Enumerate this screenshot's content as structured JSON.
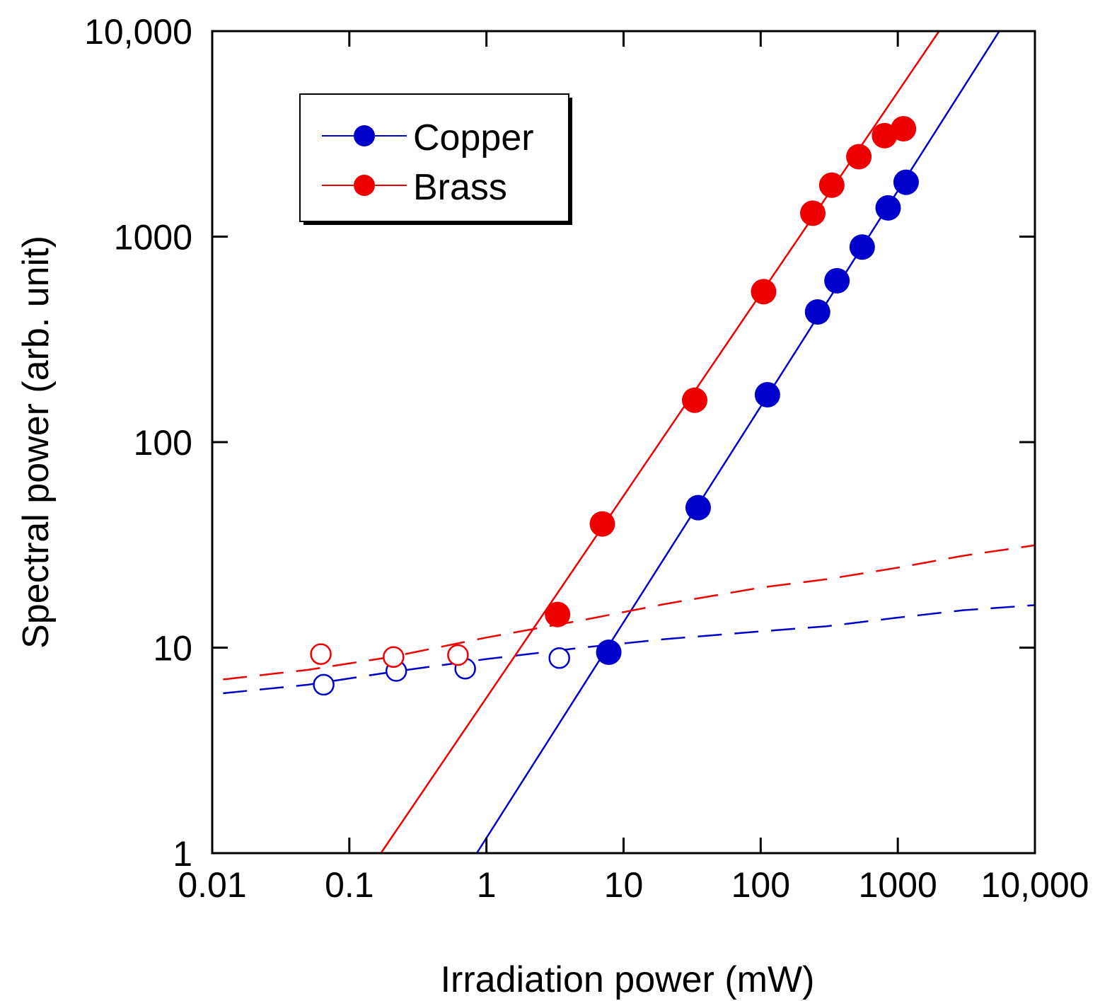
{
  "chart_data": {
    "type": "scatter",
    "title": "",
    "xlabel": "Irradiation power (mW)",
    "ylabel": "Spectral power (arb. unit)",
    "xscale": "log",
    "yscale": "log",
    "xlim": [
      0.01,
      10000
    ],
    "ylim": [
      1,
      10000
    ],
    "x_ticks": [
      0.01,
      0.1,
      1,
      10,
      100,
      1000,
      10000
    ],
    "x_tick_labels": [
      "0.01",
      "0.1",
      "1",
      "10",
      "100",
      "1000",
      "10,000"
    ],
    "y_ticks": [
      1,
      10,
      100,
      1000,
      10000
    ],
    "y_tick_labels": [
      "1",
      "10",
      "100",
      "1000",
      "10,000"
    ],
    "legend": {
      "position": "top-left",
      "entries": [
        {
          "label": "Copper",
          "color": "#0000cc"
        },
        {
          "label": "Brass",
          "color": "#ee0000"
        }
      ]
    },
    "series": [
      {
        "name": "Copper",
        "color": "#0000cc",
        "filled_points": {
          "x": [
            7.8,
            35,
            112,
            260,
            360,
            550,
            850,
            1150
          ],
          "y": [
            9.5,
            48,
            170,
            430,
            610,
            890,
            1380,
            1840
          ]
        },
        "open_points": {
          "x": [
            0.065,
            0.22,
            0.7,
            3.4
          ],
          "y": [
            6.6,
            7.7,
            7.9,
            8.9
          ]
        },
        "fit_line": {
          "x": [
            0.85,
            5500
          ],
          "y": [
            1,
            10000
          ]
        },
        "dashed_line": {
          "x": [
            0.012,
            0.05,
            0.2,
            1,
            5,
            20,
            100,
            300,
            1000,
            3000,
            10000
          ],
          "y": [
            6.0,
            6.6,
            7.6,
            8.8,
            10.0,
            11.0,
            12.0,
            12.7,
            14.0,
            15.2,
            16.1
          ]
        }
      },
      {
        "name": "Brass",
        "color": "#ee0000",
        "filled_points": {
          "x": [
            3.3,
            7.0,
            33,
            105,
            240,
            330,
            520,
            800,
            1100
          ],
          "y": [
            14.5,
            40,
            160,
            540,
            1300,
            1780,
            2450,
            3100,
            3350
          ]
        },
        "open_points": {
          "x": [
            0.062,
            0.21,
            0.62
          ],
          "y": [
            9.3,
            9.0,
            9.2
          ]
        },
        "fit_line": {
          "x": [
            0.17,
            2000
          ],
          "y": [
            1,
            10000
          ]
        },
        "dashed_line": {
          "x": [
            0.012,
            0.05,
            0.2,
            1,
            5,
            20,
            100,
            300,
            1000,
            3000,
            10000
          ],
          "y": [
            7.0,
            7.8,
            9.0,
            11.2,
            13.6,
            16.3,
            19.6,
            21.5,
            24.5,
            28.0,
            31.5
          ]
        }
      }
    ]
  }
}
